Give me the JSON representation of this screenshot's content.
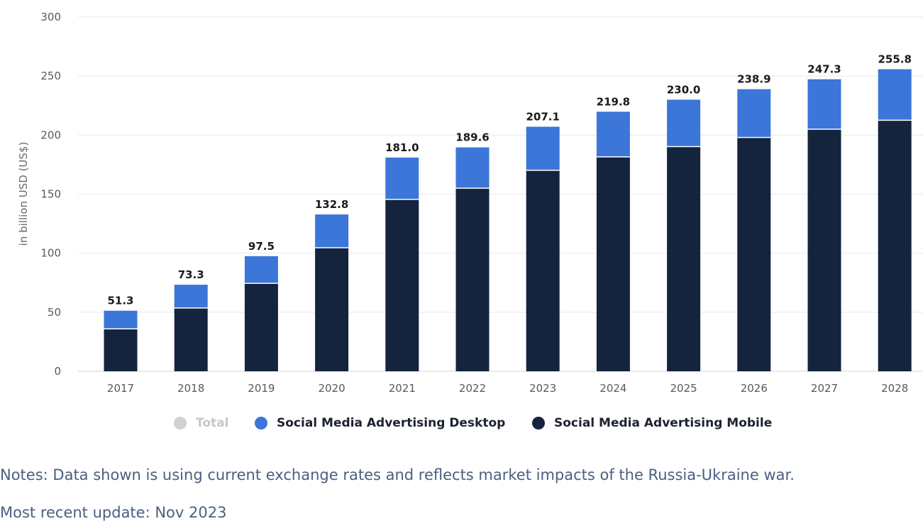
{
  "chart_data": {
    "type": "bar",
    "stacked": true,
    "categories": [
      "2017",
      "2018",
      "2019",
      "2020",
      "2021",
      "2022",
      "2023",
      "2024",
      "2025",
      "2026",
      "2027",
      "2028"
    ],
    "series": [
      {
        "name": "Social Media Advertising Mobile",
        "color": "#14243d",
        "values": [
          35.9,
          53.6,
          74.5,
          104.6,
          145.6,
          155.0,
          170.2,
          181.6,
          190.3,
          198.0,
          205.0,
          212.6
        ]
      },
      {
        "name": "Social Media Advertising Desktop",
        "color": "#3b76d8",
        "values": [
          15.4,
          19.7,
          23.0,
          28.2,
          35.4,
          34.6,
          36.9,
          38.2,
          39.7,
          40.9,
          42.3,
          43.2
        ]
      }
    ],
    "totals": [
      "51.3",
      "73.3",
      "97.5",
      "132.8",
      "181.0",
      "189.6",
      "207.1",
      "219.8",
      "230.0",
      "238.9",
      "247.3",
      "255.8"
    ],
    "ylabel": "in billion USD (US$)",
    "xlabel": "",
    "ylim": [
      0,
      300
    ],
    "yticks": [
      "0",
      "50",
      "100",
      "150",
      "200",
      "250",
      "300"
    ],
    "grid": true,
    "legend_position": "bottom"
  },
  "legend": {
    "items": [
      {
        "label": "Total",
        "color": "#cfd1d4",
        "active": false
      },
      {
        "label": "Social Media Advertising Desktop",
        "color": "#3b76d8",
        "active": true
      },
      {
        "label": "Social Media Advertising Mobile",
        "color": "#14243d",
        "active": true
      }
    ]
  },
  "notes": {
    "line1": "Notes: Data shown is using current exchange rates and reflects market impacts of the Russia-Ukraine war.",
    "line2": "Most recent update: Nov 2023"
  }
}
